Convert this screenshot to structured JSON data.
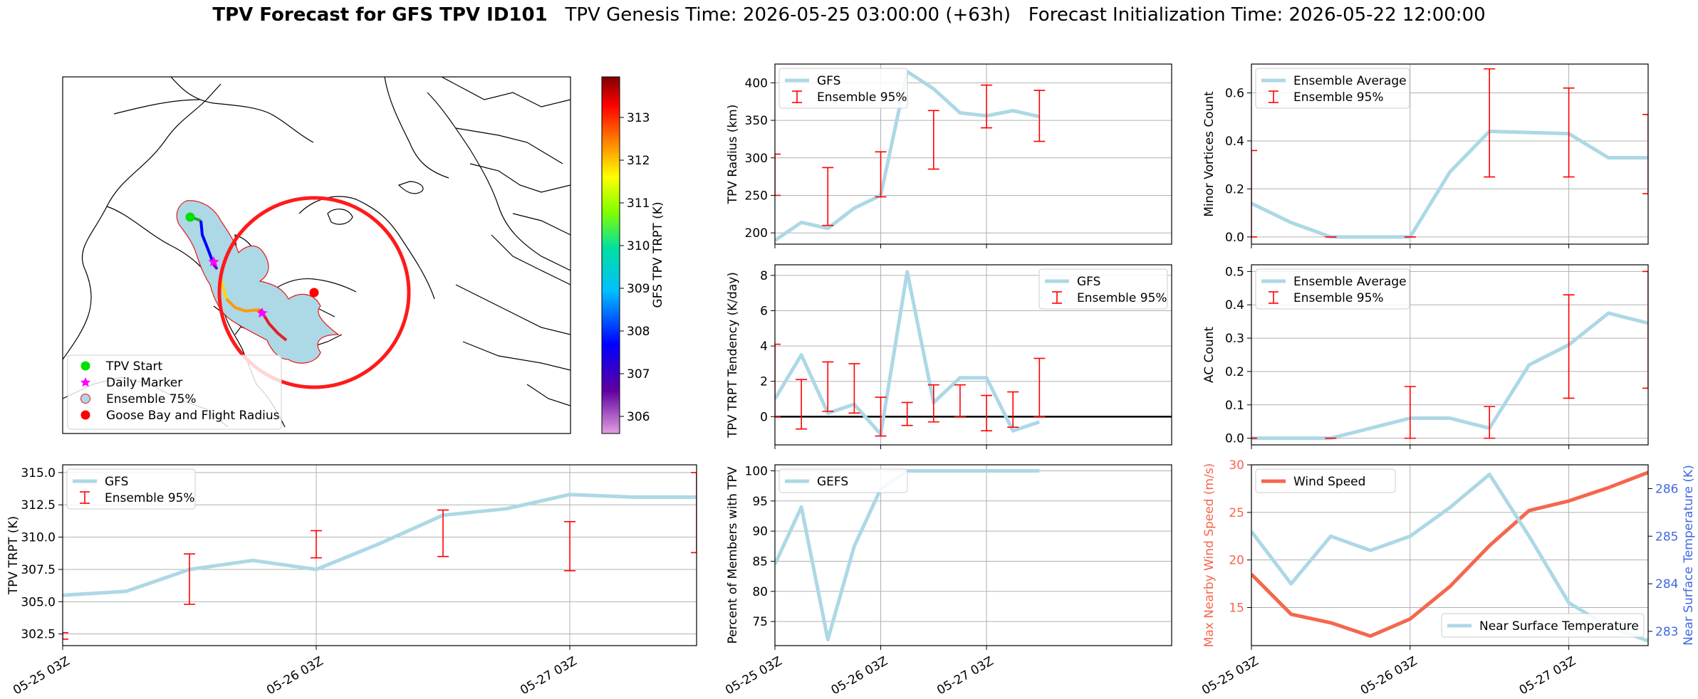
{
  "figure": {
    "title_bold": "TPV Forecast for GFS TPV ID101",
    "title_genesis": "TPV Genesis Time: 2026-05-25 03:00:00 (+63h)",
    "title_init": "Forecast Initialization Time: 2026-05-22 12:00:00"
  },
  "map": {
    "legend": [
      "TPV Start",
      "Daily Marker",
      "Ensemble 75%",
      "Goose Bay and Flight Radius"
    ],
    "colorbar_label": "GFS TPV TRPT (K)",
    "colorbar_ticks": [
      "306",
      "307",
      "308",
      "309",
      "310",
      "311",
      "312",
      "313"
    ],
    "colors": {
      "start": "#00e000",
      "daily": "#ff00ff",
      "ensemble_fill": "#add8e6",
      "ensemble_edge": "#e31a1c",
      "goose": "#ff0000"
    }
  },
  "colors": {
    "gfs": "#add8e6",
    "err": "#ff0000",
    "wind": "#f4674d",
    "temp": "#4169e1"
  },
  "chart_data": [
    {
      "type": "line",
      "panel": "radius",
      "ylabel": "TPV Radius (km)",
      "yticks": [
        200,
        250,
        300,
        350,
        400
      ],
      "ylim": [
        185,
        425
      ],
      "xlim": [
        0,
        15
      ],
      "x": [
        0,
        1,
        2,
        3,
        4,
        5,
        6,
        7,
        8,
        9,
        10
      ],
      "series": [
        {
          "name": "GFS",
          "values": [
            190,
            214,
            206,
            233,
            250,
            415,
            392,
            360,
            356,
            363,
            355
          ]
        }
      ],
      "errorbars": {
        "name": "Ensemble 95%",
        "x": [
          0,
          2,
          4,
          6,
          8,
          10
        ],
        "low": [
          250,
          210,
          248,
          285,
          340,
          322
        ],
        "high": [
          305,
          287,
          308,
          363,
          397,
          390
        ]
      },
      "legend": "top-left"
    },
    {
      "type": "line",
      "panel": "tendency",
      "ylabel": "TPV TRPT Tendency (K/day)",
      "yticks": [
        0,
        2,
        4,
        6,
        8
      ],
      "ylim": [
        -1.6,
        8.6
      ],
      "xlim": [
        0,
        15
      ],
      "x": [
        0,
        1,
        2,
        3,
        4,
        5,
        6,
        7,
        8,
        9,
        10
      ],
      "series": [
        {
          "name": "GFS",
          "values": [
            1.0,
            3.5,
            0.2,
            0.7,
            -1.0,
            8.2,
            0.8,
            2.2,
            2.2,
            -0.8,
            -0.3
          ]
        }
      ],
      "errorbars": {
        "name": "Ensemble 95%",
        "x": [
          0,
          1,
          2,
          3,
          4,
          5,
          6,
          7,
          8,
          9,
          10
        ],
        "low": [
          0.0,
          -0.7,
          0.3,
          0.2,
          -1.1,
          -0.5,
          -0.3,
          0.0,
          -0.8,
          -0.6,
          0.0
        ],
        "high": [
          4.1,
          2.1,
          3.1,
          3.0,
          1.1,
          0.8,
          1.8,
          1.8,
          1.2,
          1.4,
          3.3
        ]
      },
      "hline": 0,
      "legend": "top-right"
    },
    {
      "type": "line",
      "panel": "trpt",
      "ylabel": "TPV TRPT (K)",
      "yticks": [
        302.5,
        305.0,
        307.5,
        310.0,
        312.5,
        315.0
      ],
      "ylim": [
        301.6,
        315.6
      ],
      "xlim": [
        0,
        10
      ],
      "x": [
        0,
        1,
        2,
        3,
        4,
        5,
        6,
        7,
        8,
        9,
        10
      ],
      "series": [
        {
          "name": "GFS",
          "values": [
            305.5,
            305.8,
            307.5,
            308.2,
            307.5,
            309.5,
            311.7,
            312.2,
            313.3,
            313.1,
            313.1
          ]
        }
      ],
      "errorbars": {
        "name": "Ensemble 95%",
        "x": [
          0,
          2,
          4,
          6,
          8,
          10
        ],
        "low": [
          302.1,
          304.8,
          308.4,
          308.5,
          307.4,
          308.8
        ],
        "high": [
          302.6,
          308.7,
          310.5,
          312.1,
          311.2,
          315.0
        ]
      },
      "legend": "top-left"
    },
    {
      "type": "line",
      "panel": "percent",
      "ylabel": "Percent of Members with TPV",
      "yticks": [
        75,
        80,
        85,
        90,
        95,
        100
      ],
      "ylim": [
        71,
        101
      ],
      "xlim": [
        0,
        15
      ],
      "x": [
        0,
        1,
        2,
        3,
        4,
        5,
        6,
        7,
        8,
        9,
        10
      ],
      "series": [
        {
          "name": "GEFS",
          "values": [
            84.5,
            94,
            72,
            87.5,
            97,
            100,
            100,
            100,
            100,
            100,
            100
          ]
        }
      ],
      "legend": "top-left"
    },
    {
      "type": "line",
      "panel": "minor",
      "ylabel": "Minor Vortices Count",
      "yticks": [
        0.0,
        0.2,
        0.4,
        0.6
      ],
      "ylim": [
        -0.03,
        0.72
      ],
      "xlim": [
        0,
        10
      ],
      "x": [
        0,
        1,
        2,
        3,
        4,
        5,
        6,
        7,
        8,
        9,
        10
      ],
      "series": [
        {
          "name": "Ensemble Average",
          "values": [
            0.14,
            0.06,
            0.0,
            0.0,
            0.0,
            0.27,
            0.44,
            0.435,
            0.43,
            0.33,
            0.33
          ]
        }
      ],
      "errorbars": {
        "name": "Ensemble 95%",
        "x": [
          0,
          2,
          4,
          6,
          8,
          10
        ],
        "low": [
          0.0,
          0.0,
          0.0,
          0.25,
          0.25,
          0.18
        ],
        "high": [
          0.36,
          0.0,
          0.0,
          0.7,
          0.62,
          0.51
        ]
      },
      "legend": "top-left"
    },
    {
      "type": "line",
      "panel": "ac",
      "ylabel": "AC Count",
      "yticks": [
        0.0,
        0.1,
        0.2,
        0.3,
        0.4,
        0.5
      ],
      "ylim": [
        -0.02,
        0.52
      ],
      "xlim": [
        0,
        10
      ],
      "x": [
        0,
        1,
        2,
        3,
        4,
        5,
        6,
        7,
        8,
        9,
        10
      ],
      "series": [
        {
          "name": "Ensemble Average",
          "values": [
            0.0,
            0.0,
            0.0,
            0.03,
            0.06,
            0.06,
            0.03,
            0.22,
            0.28,
            0.375,
            0.345
          ]
        }
      ],
      "errorbars": {
        "name": "Ensemble 95%",
        "x": [
          0,
          2,
          4,
          6,
          8,
          10
        ],
        "low": [
          0.0,
          0.0,
          0.0,
          0.0,
          0.12,
          0.15
        ],
        "high": [
          0.0,
          0.0,
          0.155,
          0.095,
          0.43,
          0.5
        ]
      },
      "legend": "top-left"
    },
    {
      "type": "line",
      "panel": "wind",
      "ylabel": "Max Nearby Wind Speed (m/s)",
      "y2label": "Near Surface Temperature (K)",
      "yticks": [
        15,
        20,
        25,
        30
      ],
      "ylim": [
        11,
        30
      ],
      "y2ticks": [
        283,
        284,
        285,
        286
      ],
      "y2lim": [
        282.7,
        286.5
      ],
      "xlim": [
        0,
        10
      ],
      "x": [
        0,
        1,
        2,
        3,
        4,
        5,
        6,
        7,
        8,
        9,
        10
      ],
      "series": [
        {
          "name": "Wind Speed",
          "values": [
            18.5,
            14.3,
            13.4,
            12.0,
            13.8,
            17.2,
            21.5,
            25.2,
            26.2,
            27.6,
            29.2
          ]
        },
        {
          "name": "Near Surface Temperature",
          "axis": "right",
          "values": [
            285.1,
            284.0,
            285.0,
            284.7,
            285.0,
            285.6,
            286.3,
            285.0,
            283.6,
            283.1,
            282.8
          ]
        }
      ],
      "legend": "top-left / bottom-right"
    }
  ],
  "xaxis": {
    "ticklabels": [
      "05-25 03Z",
      "05-26 03Z",
      "05-27 03Z"
    ],
    "tick_positions": [
      0,
      4,
      8
    ]
  }
}
